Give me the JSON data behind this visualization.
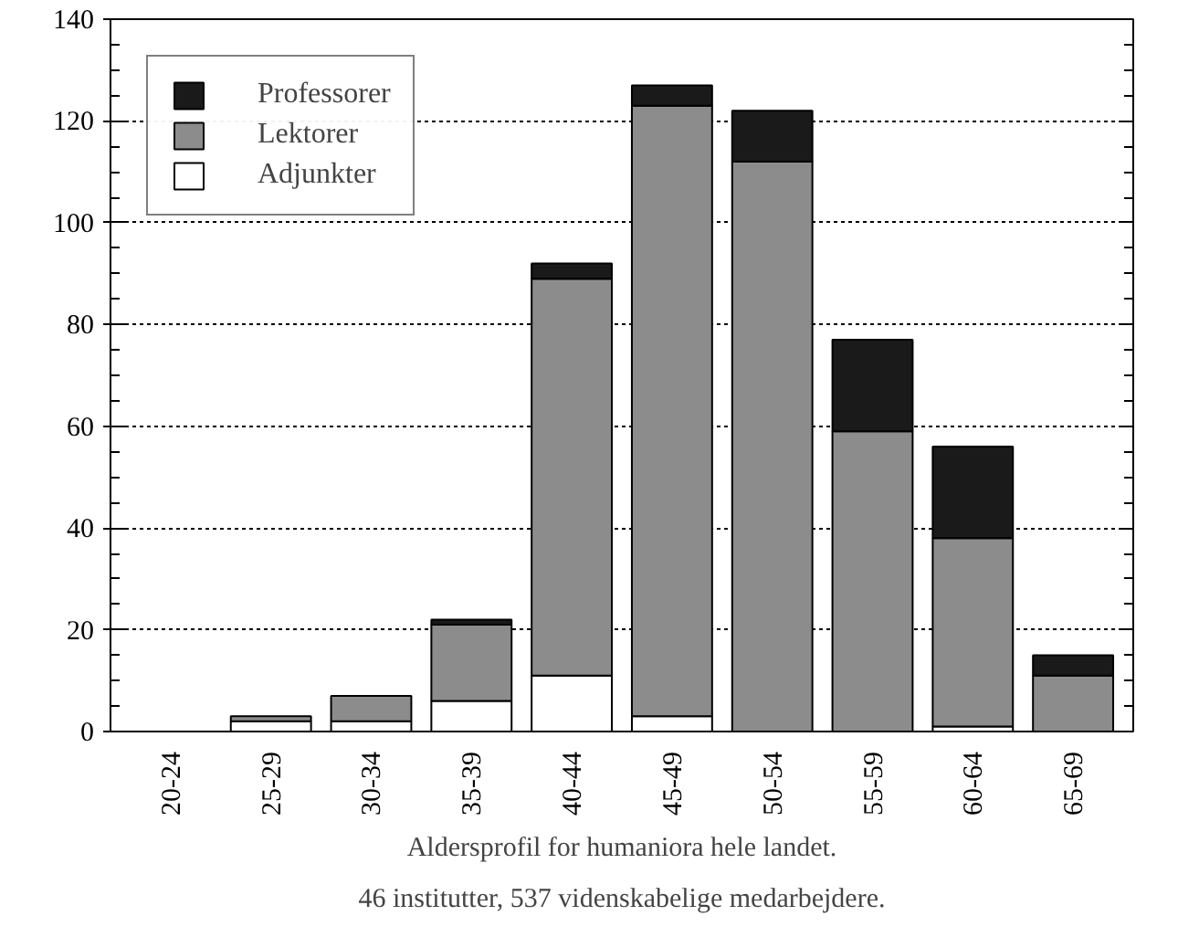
{
  "chart_data": {
    "type": "bar",
    "stacked": true,
    "title": "Aldersprofil for humaniora hele landet.",
    "subtitle": "46 institutter, 537 videnskabelige medarbejdere.",
    "categories": [
      "20-24",
      "25-29",
      "30-34",
      "35-39",
      "40-44",
      "45-49",
      "50-54",
      "55-59",
      "60-64",
      "65-69"
    ],
    "series": [
      {
        "name": "Adjunkter",
        "color": "#ffffff",
        "values": [
          0,
          2,
          2,
          6,
          11,
          3,
          0,
          0,
          1,
          0
        ]
      },
      {
        "name": "Lektorer",
        "color": "#8c8c8c",
        "values": [
          0,
          1,
          5,
          15,
          78,
          120,
          112,
          59,
          37,
          11
        ]
      },
      {
        "name": "Professorer",
        "color": "#1a1a1a",
        "values": [
          0,
          0,
          0,
          1,
          3,
          4,
          10,
          18,
          18,
          4
        ]
      }
    ],
    "ylim": [
      0,
      140
    ],
    "yticks": [
      0,
      20,
      40,
      60,
      80,
      100,
      120,
      140
    ],
    "grid": "y",
    "legend": "top left"
  }
}
